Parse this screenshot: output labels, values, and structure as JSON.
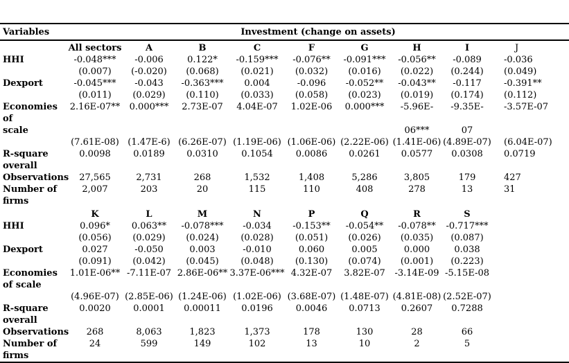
{
  "page": {
    "background": "#ffffff",
    "text_color": "#000000",
    "rule_color": "#000000"
  },
  "table": {
    "header": {
      "variables_label": "Variables",
      "dependent_label": "Investment (change on assets)"
    },
    "panels": [
      {
        "columns": [
          "All sectors",
          "A",
          "B",
          "C",
          "F",
          "G",
          "H",
          "I",
          "J"
        ],
        "rows": [
          {
            "label": "HHI",
            "cells": [
              "-0.048***",
              "-0.006",
              "0.122*",
              "-0.159***",
              "-0.076**",
              "-0.091***",
              "-0.056**",
              "-0.089",
              "-0.036"
            ]
          },
          {
            "label": "",
            "cells": [
              "(0.007)",
              "(-0.020)",
              "(0.068)",
              "(0.021)",
              "(0.032)",
              "(0.016)",
              "(0.022)",
              "(0.244)",
              "(0.049)"
            ]
          },
          {
            "label": "Dexport",
            "cells": [
              "-0.045***",
              "-0.043",
              "-0.363***",
              "0.004",
              "-0.096",
              "-0.052**",
              "-0.043**",
              "-0.117",
              "-0.391**"
            ]
          },
          {
            "label": "",
            "cells": [
              "(0.011)",
              "(0.029)",
              "(0.110)",
              "(0.033)",
              "(0.058)",
              "(0.023)",
              "(0.019)",
              "(0.174)",
              "(0.112)"
            ]
          },
          {
            "label": "Economies\nof\nscale",
            "cells": [
              "2.16E-07**",
              "0.000***",
              "2.73E-07",
              "4.04E-07",
              "1.02E-06",
              "0.000***",
              "-5.96E-\n\n06***",
              "-9.35E-\n\n07",
              "-3.57E-07"
            ]
          },
          {
            "label": "",
            "cells": [
              "(7.61E-08)",
              "(1.47E-6)",
              "(6.26E-07)",
              "(1.19E-06)",
              "(1.06E-06)",
              "(2.22E-06)",
              "(1.41E-06)",
              "(4.89E-07)",
              "(6.04E-07)"
            ]
          },
          {
            "label": "R-square\noverall",
            "cells": [
              "0.0098",
              "0.0189",
              "0.0310",
              "0.1054",
              "0.0086",
              "0.0261",
              "0.0577",
              "0.0308",
              "0.0719"
            ]
          },
          {
            "label": "Observations",
            "cells": [
              "27,565",
              "2,731",
              "268",
              "1,532",
              "1,408",
              "5,286",
              "3,805",
              "179",
              "427"
            ]
          },
          {
            "label": "Number of\nfirms",
            "cells": [
              "2,007",
              "203",
              "20",
              "115",
              "110",
              "408",
              "278",
              "13",
              "31"
            ]
          }
        ]
      },
      {
        "columns": [
          "K",
          "L",
          "M",
          "N",
          "P",
          "Q",
          "R",
          "S",
          ""
        ],
        "rows": [
          {
            "label": "HHI",
            "cells": [
              "0.096*",
              "0.063**",
              "-0.078***",
              "-0.034",
              "-0.153**",
              "-0.054**",
              "-0.078**",
              "-0.717***",
              ""
            ]
          },
          {
            "label": "",
            "cells": [
              "(0.056)",
              "(0.029)",
              "(0.024)",
              "(0.028)",
              "(0.051)",
              "(0.026)",
              "(0.035)",
              "(0.087)",
              ""
            ]
          },
          {
            "label": "Dexport",
            "cells": [
              "0.027",
              "-0.050",
              "0.003",
              "-0.010",
              "0.060",
              "0.005",
              "0.000",
              "0.038",
              ""
            ]
          },
          {
            "label": "",
            "cells": [
              "(0.091)",
              "(0.042)",
              "(0.045)",
              "(0.048)",
              "(0.130)",
              "(0.074)",
              "(0.001)",
              "(0.223)",
              ""
            ]
          },
          {
            "label": "Economies\nof scale",
            "cells": [
              "1.01E-06**",
              "-7.11E-07",
              "2.86E-06**",
              "3.37E-06***",
              "4.32E-07",
              "3.82E-07",
              "-3.14E-09",
              "-5.15E-08",
              ""
            ]
          },
          {
            "label": "",
            "cells": [
              "(4.96E-07)",
              "(2.85E-06)",
              "(1.24E-06)",
              "(1.02E-06)",
              "(3.68E-07)",
              "(1.48E-07)",
              "(4.81E-08)",
              "(2.52E-07)",
              ""
            ]
          },
          {
            "label": "R-square\noverall",
            "cells": [
              "0.0020",
              "0.0001",
              "0.00011",
              "0.0196",
              "0.0046",
              "0.0713",
              "0.2607",
              "0.7288",
              ""
            ]
          },
          {
            "label": "Observations",
            "cells": [
              "268",
              "8,063",
              "1,823",
              "1,373",
              "178",
              "130",
              "28",
              "66",
              ""
            ]
          },
          {
            "label": "Number of\nfirms",
            "cells": [
              "24",
              "599",
              "149",
              "102",
              "13",
              "10",
              "2",
              "5",
              ""
            ]
          }
        ]
      }
    ]
  }
}
